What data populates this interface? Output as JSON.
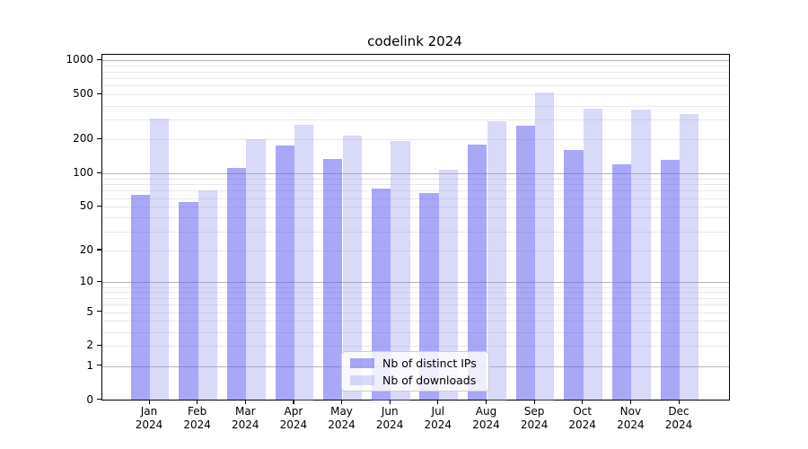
{
  "title": "codelink 2024",
  "chart_data": {
    "type": "bar",
    "title": "codelink 2024",
    "categories": [
      "Jan 2024",
      "Feb 2024",
      "Mar 2024",
      "Apr 2024",
      "May 2024",
      "Jun 2024",
      "Jul 2024",
      "Aug 2024",
      "Sep 2024",
      "Oct 2024",
      "Nov 2024",
      "Dec 2024"
    ],
    "series": [
      {
        "name": "Nb of distinct IPs",
        "color": "rgba(97,97,239,0.55)",
        "solid_color": "#a8a8f6",
        "values": [
          64,
          55,
          111,
          176,
          134,
          73,
          67,
          179,
          266,
          161,
          120,
          131
        ]
      },
      {
        "name": "Nb of downloads",
        "color": "rgba(146,146,235,0.35)",
        "solid_color": "#d9d9f8",
        "values": [
          308,
          70,
          200,
          272,
          216,
          194,
          108,
          290,
          522,
          378,
          369,
          337
        ]
      }
    ],
    "y_ticks": [
      0,
      1,
      2,
      5,
      10,
      20,
      50,
      100,
      200,
      500,
      1000
    ],
    "ylim": [
      0,
      1130
    ],
    "yscale": "log1p",
    "xlabel": "",
    "ylabel": "",
    "grid": "horizontal major+minor",
    "legend_position": "lower center"
  },
  "colors": {
    "background": "#ffffff",
    "axis": "#000000",
    "major_grid": "#b5b5b5",
    "minor_grid": "#e9e9e9",
    "bar_dark": "#a8a8f6",
    "bar_light": "#d9d9f8"
  }
}
